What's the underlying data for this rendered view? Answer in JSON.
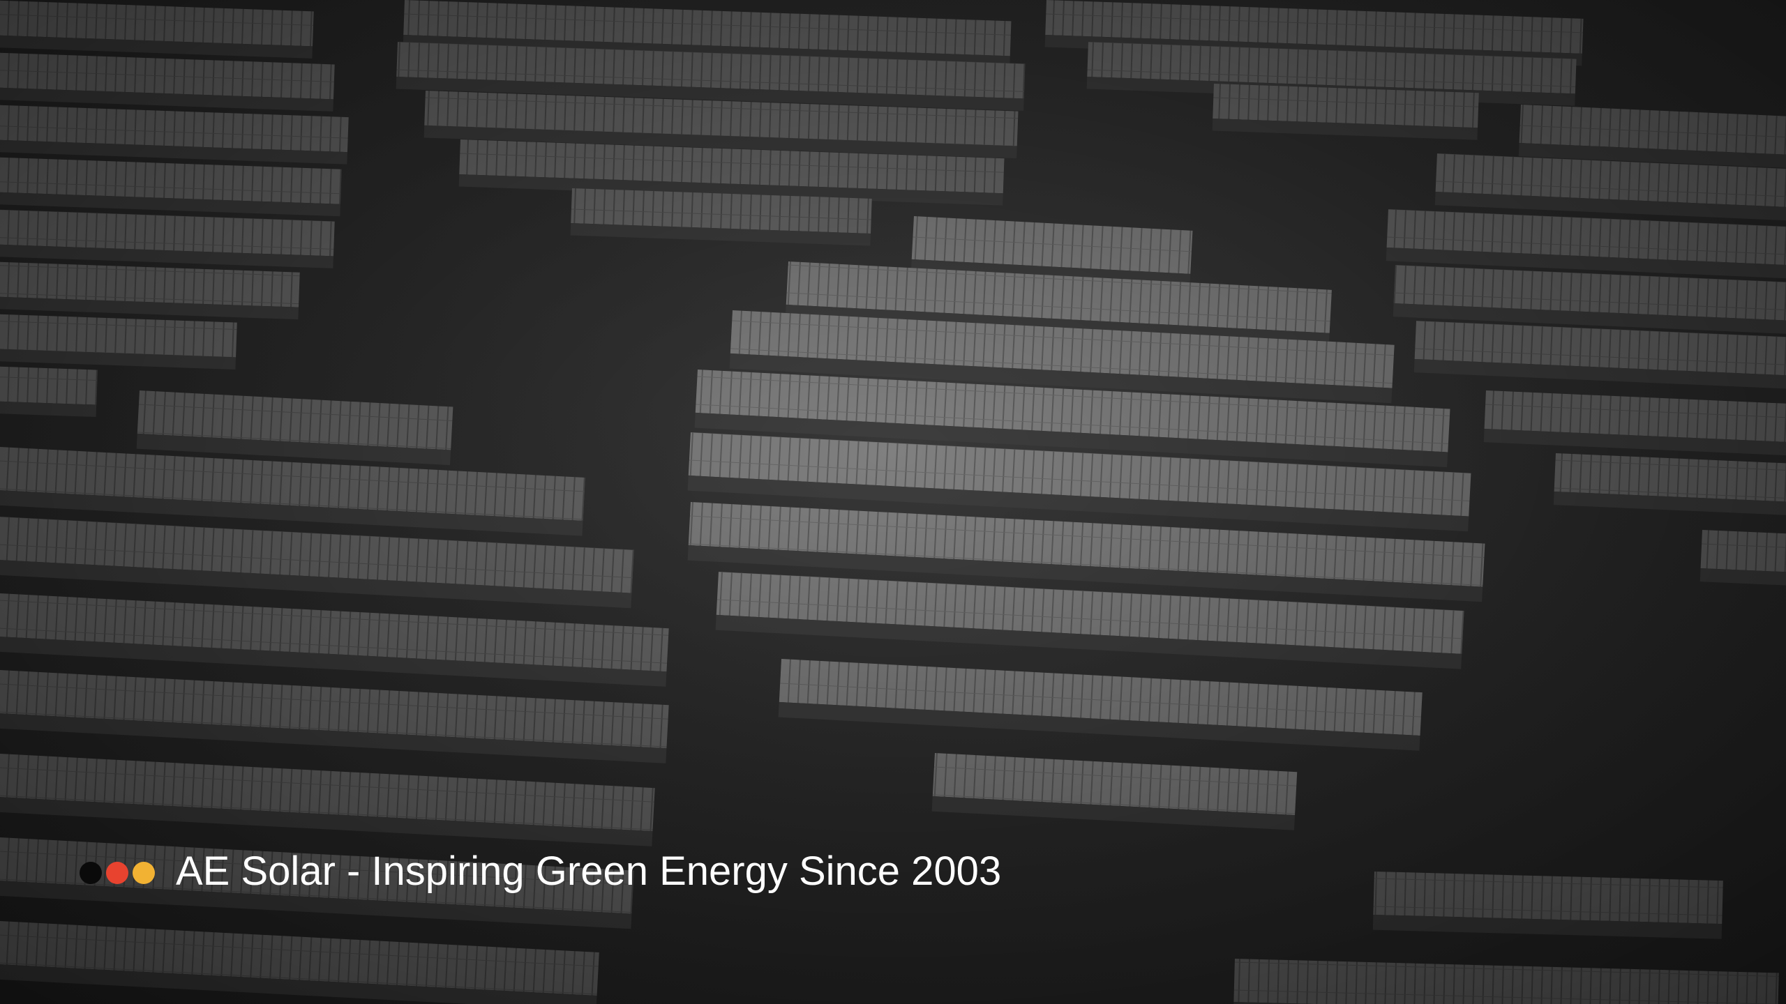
{
  "slide": {
    "caption": "AE Solar - Inspiring Green Energy Since 2003",
    "background_description_tag": "solar-farm-aerial-photo"
  },
  "colors": {
    "dot_1": "#0a0a0a",
    "dot_2": "#e8432f",
    "dot_3": "#f2b233",
    "panel_light": "#7a7a7a",
    "panel_dark": "#4a4a4a",
    "ground": "#2e2e2e"
  }
}
